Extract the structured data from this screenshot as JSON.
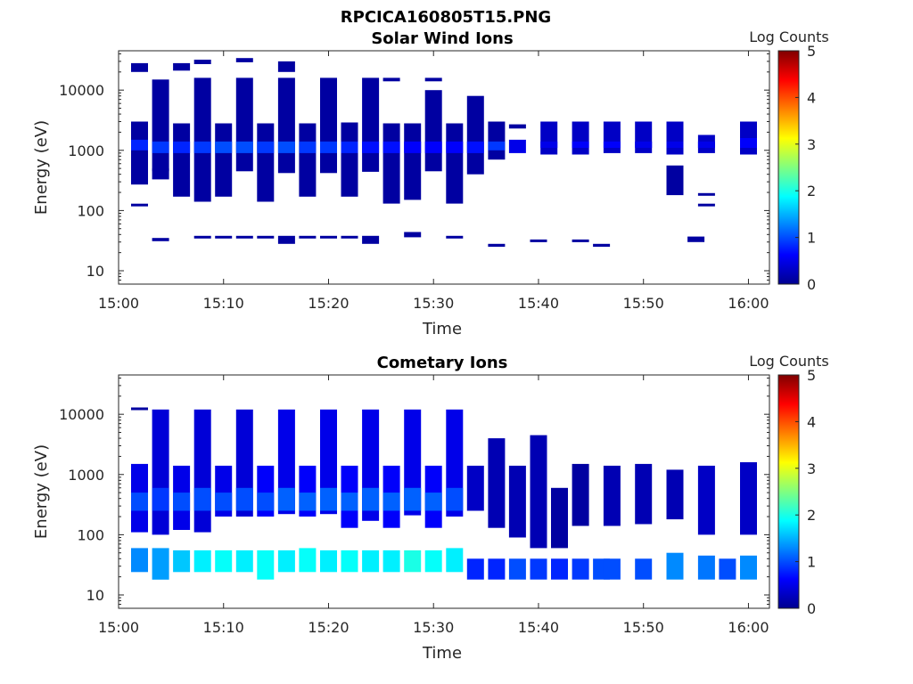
{
  "figure_title": "RPCICA160805T15.PNG",
  "colormap": [
    "#00008f",
    "#0000ff",
    "#0080ff",
    "#00ffff",
    "#80ff80",
    "#ffff00",
    "#ff8000",
    "#ff0000",
    "#800000"
  ],
  "chart_data": [
    {
      "type": "heatmap",
      "title": "Solar Wind Ions",
      "xlabel": "Time",
      "ylabel": "Energy (eV)",
      "x_ticks": [
        "15:00",
        "15:10",
        "15:20",
        "15:30",
        "15:40",
        "15:50",
        "16:00"
      ],
      "y_ticks": [
        "10",
        "100",
        "1000",
        "10000"
      ],
      "yscale": "log",
      "ylim": [
        6,
        45000
      ],
      "xlim": [
        "15:00",
        "16:02"
      ],
      "colorbar": {
        "label": "Log Counts",
        "range": [
          0,
          5
        ],
        "ticks": [
          "0",
          "1",
          "2",
          "3",
          "4",
          "5"
        ]
      },
      "columns": [
        {
          "time": "15:02",
          "bands": [
            [
              20000,
              28000,
              0.1
            ],
            [
              270,
              3000,
              0.1
            ],
            [
              1000,
              1500,
              0.8
            ],
            [
              120,
              130,
              0.1
            ]
          ]
        },
        {
          "time": "15:04",
          "bands": [
            [
              31,
              35,
              0.1
            ],
            [
              330,
              15000,
              0.1
            ],
            [
              900,
              1400,
              0.9
            ],
            [
              450,
              500,
              0.1
            ]
          ]
        },
        {
          "time": "15:06",
          "bands": [
            [
              21000,
              28000,
              0.1
            ],
            [
              170,
              2800,
              0.1
            ],
            [
              900,
              1400,
              0.8
            ]
          ]
        },
        {
          "time": "15:08",
          "bands": [
            [
              35,
              38,
              0.1
            ],
            [
              140,
              16000,
              0.1
            ],
            [
              900,
              1400,
              0.9
            ],
            [
              27000,
              32000,
              0.1
            ]
          ]
        },
        {
          "time": "15:10",
          "bands": [
            [
              170,
              2800,
              0.1
            ],
            [
              900,
              1400,
              1.0
            ],
            [
              35,
              38,
              0.1
            ]
          ]
        },
        {
          "time": "15:12",
          "bands": [
            [
              450,
              16000,
              0.1
            ],
            [
              900,
              1400,
              1.0
            ],
            [
              29000,
              34000,
              0.1
            ],
            [
              35,
              38,
              0.1
            ]
          ]
        },
        {
          "time": "15:14",
          "bands": [
            [
              140,
              2800,
              0.1
            ],
            [
              900,
              1400,
              0.9
            ],
            [
              35,
              38,
              0.1
            ]
          ]
        },
        {
          "time": "15:16",
          "bands": [
            [
              420,
              16000,
              0.1
            ],
            [
              900,
              1400,
              1.0
            ],
            [
              20000,
              30000,
              0.1
            ],
            [
              28,
              38,
              0.1
            ]
          ]
        },
        {
          "time": "15:18",
          "bands": [
            [
              170,
              2800,
              0.1
            ],
            [
              900,
              1400,
              0.9
            ],
            [
              35,
              38,
              0.1
            ]
          ]
        },
        {
          "time": "15:20",
          "bands": [
            [
              420,
              16000,
              0.1
            ],
            [
              900,
              1400,
              0.9
            ],
            [
              35,
              38,
              0.1
            ]
          ]
        },
        {
          "time": "15:22",
          "bands": [
            [
              170,
              2900,
              0.1
            ],
            [
              900,
              1400,
              0.8
            ],
            [
              35,
              38,
              0.1
            ]
          ]
        },
        {
          "time": "15:24",
          "bands": [
            [
              440,
              16000,
              0.1
            ],
            [
              900,
              1400,
              0.7
            ],
            [
              28,
              38,
              0.1
            ]
          ]
        },
        {
          "time": "15:26",
          "bands": [
            [
              130,
              2800,
              0.1
            ],
            [
              900,
              1400,
              0.7
            ],
            [
              14000,
              16000,
              0.1
            ]
          ]
        },
        {
          "time": "15:28",
          "bands": [
            [
              150,
              2800,
              0.1
            ],
            [
              900,
              1400,
              0.6
            ],
            [
              36,
              44,
              0.1
            ]
          ]
        },
        {
          "time": "15:30",
          "bands": [
            [
              450,
              10000,
              0.1
            ],
            [
              900,
              1400,
              0.6
            ],
            [
              14000,
              16000,
              0.1
            ]
          ]
        },
        {
          "time": "15:32",
          "bands": [
            [
              130,
              2800,
              0.1
            ],
            [
              900,
              1400,
              0.6
            ],
            [
              35,
              38,
              0.1
            ]
          ]
        },
        {
          "time": "15:34",
          "bands": [
            [
              400,
              8000,
              0.1
            ],
            [
              900,
              1400,
              0.7
            ]
          ]
        },
        {
          "time": "15:36",
          "bands": [
            [
              700,
              3000,
              0.1
            ],
            [
              1000,
              1400,
              0.9
            ],
            [
              25,
              28,
              0.1
            ]
          ]
        },
        {
          "time": "15:38",
          "bands": [
            [
              900,
              1500,
              0.5
            ],
            [
              2300,
              2700,
              0.1
            ]
          ]
        },
        {
          "time": "15:40",
          "bands": [
            [
              30,
              33,
              0.1
            ]
          ]
        },
        {
          "time": "15:41",
          "bands": [
            [
              850,
              3000,
              0.3
            ],
            [
              1100,
              1400,
              0.5
            ]
          ]
        },
        {
          "time": "15:44",
          "bands": [
            [
              850,
              3000,
              0.3
            ],
            [
              1100,
              1400,
              0.6
            ],
            [
              30,
              33,
              0.1
            ]
          ]
        },
        {
          "time": "15:46",
          "bands": [
            [
              25,
              28,
              0.1
            ]
          ]
        },
        {
          "time": "15:47",
          "bands": [
            [
              900,
              3000,
              0.3
            ],
            [
              1100,
              1400,
              0.6
            ]
          ]
        },
        {
          "time": "15:50",
          "bands": [
            [
              900,
              3000,
              0.3
            ],
            [
              1100,
              1400,
              0.5
            ]
          ]
        },
        {
          "time": "15:53",
          "bands": [
            [
              850,
              3000,
              0.3
            ],
            [
              1100,
              1400,
              0.5
            ],
            [
              180,
              560,
              0.1
            ]
          ]
        },
        {
          "time": "15:55",
          "bands": [
            [
              30,
              37,
              0.1
            ]
          ]
        },
        {
          "time": "15:56",
          "bands": [
            [
              900,
              1800,
              0.3
            ],
            [
              1100,
              1400,
              0.5
            ],
            [
              120,
              130,
              0.1
            ],
            [
              190,
              195,
              0.1
            ]
          ]
        },
        {
          "time": "16:00",
          "bands": [
            [
              850,
              3000,
              0.3
            ],
            [
              1100,
              1600,
              0.6
            ]
          ]
        }
      ]
    },
    {
      "type": "heatmap",
      "title": "Cometary Ions",
      "xlabel": "Time",
      "ylabel": "Energy (eV)",
      "x_ticks": [
        "15:00",
        "15:10",
        "15:20",
        "15:30",
        "15:40",
        "15:50",
        "16:00"
      ],
      "y_ticks": [
        "10",
        "100",
        "1000",
        "10000"
      ],
      "yscale": "log",
      "ylim": [
        6,
        45000
      ],
      "xlim": [
        "15:00",
        "16:02"
      ],
      "colorbar": {
        "label": "Log Counts",
        "range": [
          0,
          5
        ],
        "ticks": [
          "0",
          "1",
          "2",
          "3",
          "4",
          "5"
        ]
      },
      "columns": [
        {
          "time": "15:02",
          "bands": [
            [
              110,
              1500,
              0.5
            ],
            [
              250,
              500,
              1.0
            ],
            [
              24,
              60,
              1.3
            ],
            [
              12000,
              13000,
              0.1
            ]
          ]
        },
        {
          "time": "15:04",
          "bands": [
            [
              100,
              12000,
              0.4
            ],
            [
              250,
              600,
              0.9
            ],
            [
              18,
              60,
              1.4
            ]
          ]
        },
        {
          "time": "15:06",
          "bands": [
            [
              120,
              1400,
              0.5
            ],
            [
              250,
              500,
              1.0
            ],
            [
              24,
              55,
              1.6
            ]
          ]
        },
        {
          "time": "15:08",
          "bands": [
            [
              110,
              12000,
              0.4
            ],
            [
              250,
              600,
              1.0
            ],
            [
              24,
              55,
              1.8
            ]
          ]
        },
        {
          "time": "15:10",
          "bands": [
            [
              200,
              1400,
              0.5
            ],
            [
              250,
              500,
              1.0
            ],
            [
              24,
              55,
              1.9
            ]
          ]
        },
        {
          "time": "15:12",
          "bands": [
            [
              200,
              12000,
              0.4
            ],
            [
              250,
              600,
              1.0
            ],
            [
              24,
              55,
              1.8
            ]
          ]
        },
        {
          "time": "15:14",
          "bands": [
            [
              200,
              1400,
              0.6
            ],
            [
              250,
              500,
              1.0
            ],
            [
              18,
              55,
              1.9
            ]
          ]
        },
        {
          "time": "15:16",
          "bands": [
            [
              220,
              12000,
              0.5
            ],
            [
              250,
              600,
              1.1
            ],
            [
              24,
              55,
              1.8
            ]
          ]
        },
        {
          "time": "15:18",
          "bands": [
            [
              200,
              1400,
              0.6
            ],
            [
              250,
              500,
              1.1
            ],
            [
              24,
              60,
              1.9
            ]
          ]
        },
        {
          "time": "15:20",
          "bands": [
            [
              220,
              12000,
              0.5
            ],
            [
              250,
              600,
              1.1
            ],
            [
              24,
              55,
              1.8
            ]
          ]
        },
        {
          "time": "15:22",
          "bands": [
            [
              130,
              1400,
              0.6
            ],
            [
              250,
              500,
              1.1
            ],
            [
              24,
              55,
              1.9
            ]
          ]
        },
        {
          "time": "15:24",
          "bands": [
            [
              170,
              12000,
              0.5
            ],
            [
              250,
              600,
              1.1
            ],
            [
              24,
              55,
              1.8
            ]
          ]
        },
        {
          "time": "15:26",
          "bands": [
            [
              130,
              1400,
              0.6
            ],
            [
              250,
              500,
              1.1
            ],
            [
              24,
              55,
              1.8
            ]
          ]
        },
        {
          "time": "15:28",
          "bands": [
            [
              210,
              12000,
              0.5
            ],
            [
              250,
              600,
              1.1
            ],
            [
              24,
              55,
              2.0
            ]
          ]
        },
        {
          "time": "15:30",
          "bands": [
            [
              130,
              1400,
              0.6
            ],
            [
              250,
              500,
              1.1
            ],
            [
              24,
              55,
              1.9
            ]
          ]
        },
        {
          "time": "15:32",
          "bands": [
            [
              200,
              12000,
              0.5
            ],
            [
              250,
              600,
              1.0
            ],
            [
              24,
              60,
              1.8
            ]
          ]
        },
        {
          "time": "15:34",
          "bands": [
            [
              250,
              1400,
              0.3
            ],
            [
              18,
              40,
              0.8
            ]
          ]
        },
        {
          "time": "15:36",
          "bands": [
            [
              130,
              4000,
              0.2
            ],
            [
              18,
              40,
              0.8
            ]
          ]
        },
        {
          "time": "15:38",
          "bands": [
            [
              90,
              1400,
              0.2
            ],
            [
              18,
              40,
              1.0
            ]
          ]
        },
        {
          "time": "15:40",
          "bands": [
            [
              60,
              4500,
              0.2
            ],
            [
              18,
              40,
              0.9
            ]
          ]
        },
        {
          "time": "15:42",
          "bands": [
            [
              18,
              40,
              0.8
            ],
            [
              60,
              600,
              0.1
            ]
          ]
        },
        {
          "time": "15:44",
          "bands": [
            [
              18,
              40,
              0.9
            ],
            [
              140,
              1500,
              0.1
            ]
          ]
        },
        {
          "time": "15:46",
          "bands": [
            [
              18,
              40,
              1.0
            ]
          ]
        },
        {
          "time": "15:47",
          "bands": [
            [
              140,
              1400,
              0.2
            ],
            [
              18,
              40,
              1.0
            ]
          ]
        },
        {
          "time": "15:50",
          "bands": [
            [
              150,
              1500,
              0.2
            ],
            [
              18,
              40,
              1.0
            ]
          ]
        },
        {
          "time": "15:53",
          "bands": [
            [
              180,
              1200,
              0.2
            ],
            [
              18,
              50,
              1.3
            ]
          ]
        },
        {
          "time": "15:56",
          "bands": [
            [
              100,
              1400,
              0.3
            ],
            [
              18,
              45,
              1.2
            ]
          ]
        },
        {
          "time": "15:58",
          "bands": [
            [
              18,
              40,
              1.0
            ]
          ]
        },
        {
          "time": "16:00",
          "bands": [
            [
              100,
              1600,
              0.3
            ],
            [
              18,
              45,
              1.3
            ]
          ]
        }
      ]
    }
  ]
}
